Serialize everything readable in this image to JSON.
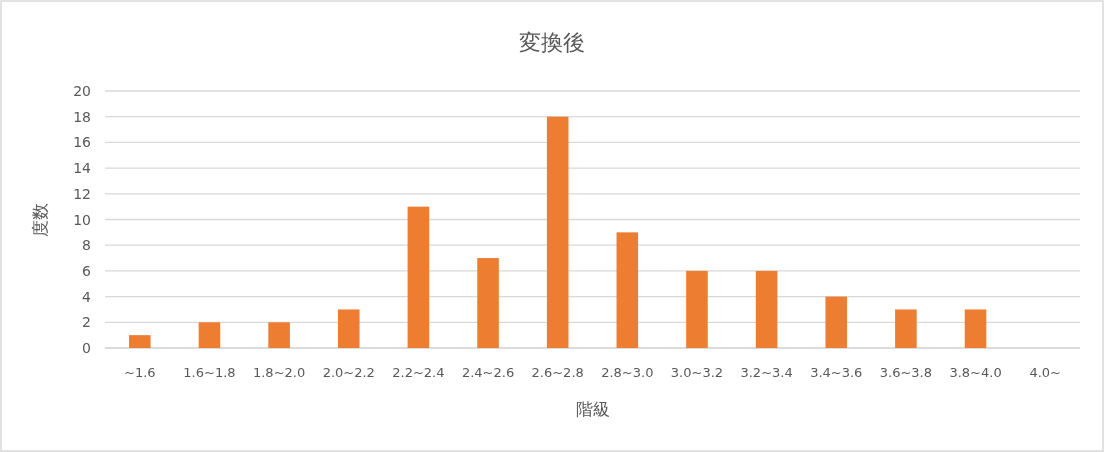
{
  "chart_data": {
    "type": "bar",
    "title": "変換後",
    "xlabel": "階級",
    "ylabel": "度数",
    "categories": [
      "~1.6",
      "1.6~1.8",
      "1.8~2.0",
      "2.0~2.2",
      "2.2~2.4",
      "2.4~2.6",
      "2.6~2.8",
      "2.8~3.0",
      "3.0~3.2",
      "3.2~3.4",
      "3.4~3.6",
      "3.6~3.8",
      "3.8~4.0",
      "4.0~"
    ],
    "values": [
      1,
      2,
      2,
      3,
      11,
      7,
      18,
      9,
      6,
      6,
      4,
      3,
      3,
      0
    ],
    "color": "#ed7d31",
    "ylim": [
      0,
      20
    ],
    "yticks": [
      0,
      2,
      4,
      6,
      8,
      10,
      12,
      14,
      16,
      18,
      20
    ],
    "grid": "y"
  }
}
